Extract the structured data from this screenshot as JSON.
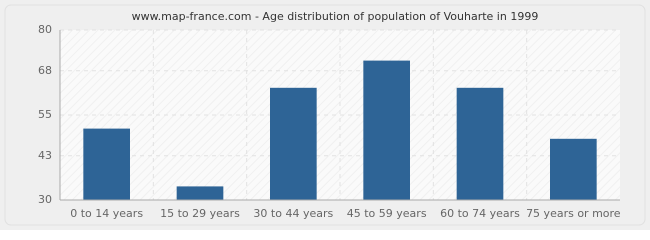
{
  "chart_data": {
    "type": "bar",
    "title": "www.map-france.com - Age distribution of population of Vouharte in 1999",
    "categories": [
      "0 to 14 years",
      "15 to 29 years",
      "30 to 44 years",
      "45 to 59 years",
      "60 to 74 years",
      "75 years or more"
    ],
    "values": [
      51,
      34,
      63,
      71,
      63,
      48
    ],
    "color": "#2e6496",
    "ylim": [
      30,
      80
    ],
    "yticks": [
      30,
      43,
      55,
      68,
      80
    ],
    "grid": true
  }
}
